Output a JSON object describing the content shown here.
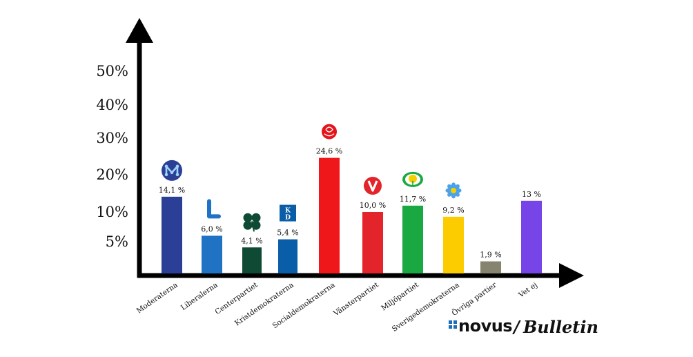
{
  "chart_data": {
    "type": "bar",
    "categories": [
      "Moderaterna",
      "Liberalerna",
      "Centerpartiet",
      "Kristdemokraterna",
      "Socialdemokraterna",
      "Vänsterpartiet",
      "Miljöpartiet",
      "Sverigedemokraterna",
      "Övriga partier",
      "Vet ej"
    ],
    "values": [
      14.1,
      6.0,
      4.1,
      5.4,
      24.6,
      10.0,
      11.7,
      9.2,
      1.9,
      13
    ],
    "value_labels": [
      "14,1 %",
      "6,0 %",
      "4,1 %",
      "5,4 %",
      "24,6 %",
      "10,0 %",
      "11,7 %",
      "9,2 %",
      "1,9 %",
      "13 %"
    ],
    "colors": [
      "#2b3f97",
      "#1f72c4",
      "#0e4a34",
      "#0a5ea8",
      "#f0171b",
      "#e3242b",
      "#1aa843",
      "#fdcc00",
      "#86836f",
      "#7744e8"
    ],
    "icons": [
      "moderaterna-logo",
      "liberalerna-logo",
      "centerpartiet-clover",
      "kristdemokraterna-logo",
      "socialdemokraterna-rose",
      "vansterpartiet-logo",
      "miljopartiet-dandelion",
      "sverigedemokraterna-flower",
      null,
      null
    ],
    "yticks": [
      {
        "value": 5,
        "label": "5%"
      },
      {
        "value": 10,
        "label": "10%"
      },
      {
        "value": 20,
        "label": "20%"
      },
      {
        "value": 30,
        "label": "30%"
      },
      {
        "value": 40,
        "label": "40%"
      },
      {
        "value": 50,
        "label": "50%"
      }
    ],
    "ylim": [
      0,
      50
    ],
    "xlabel": "",
    "ylabel": "",
    "title": "",
    "grid": false
  },
  "branding": {
    "novus": "novus",
    "separator": "/",
    "bulletin": "Bulletin"
  }
}
